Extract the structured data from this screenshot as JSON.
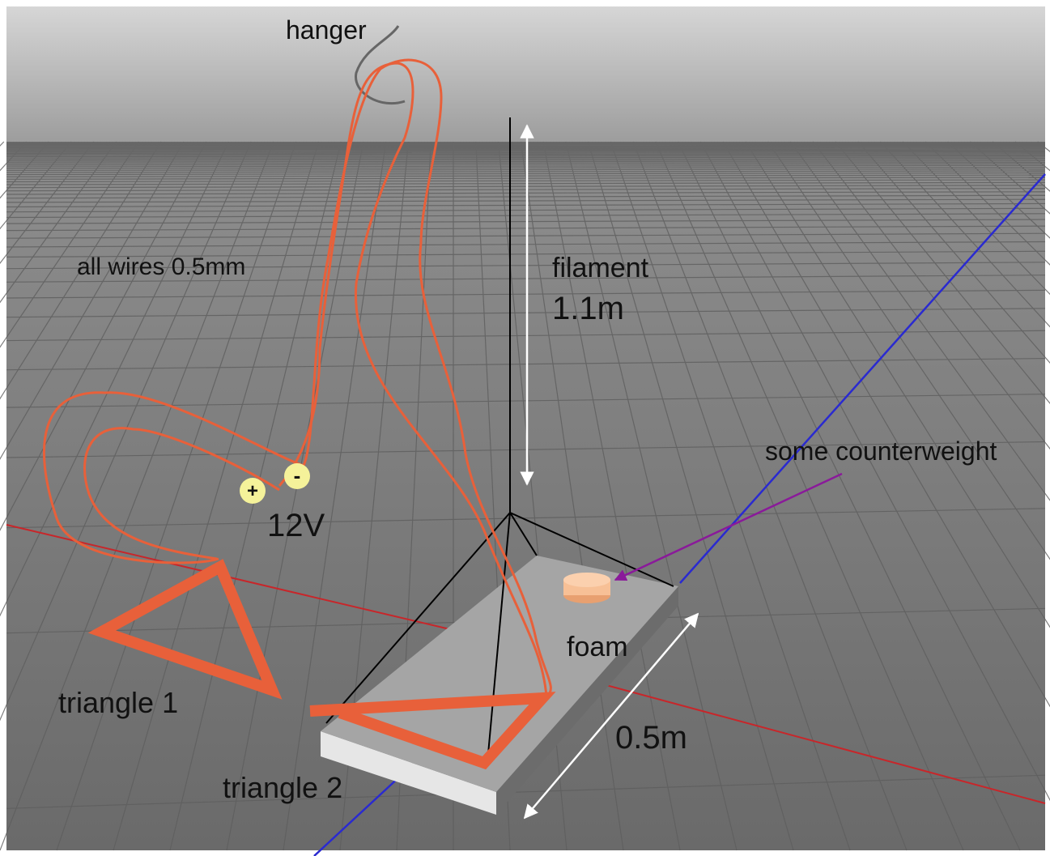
{
  "labels": {
    "hanger": "hanger",
    "wires": "all wires 0.5mm",
    "filament": "filament",
    "filament_length": "1.1m",
    "counterweight": "some counterweight",
    "plus": "+",
    "minus": "-",
    "voltage": "12V",
    "foam": "foam",
    "triangle_1": "triangle 1",
    "triangle_2": "triangle 2",
    "foam_length": "0.5m"
  }
}
